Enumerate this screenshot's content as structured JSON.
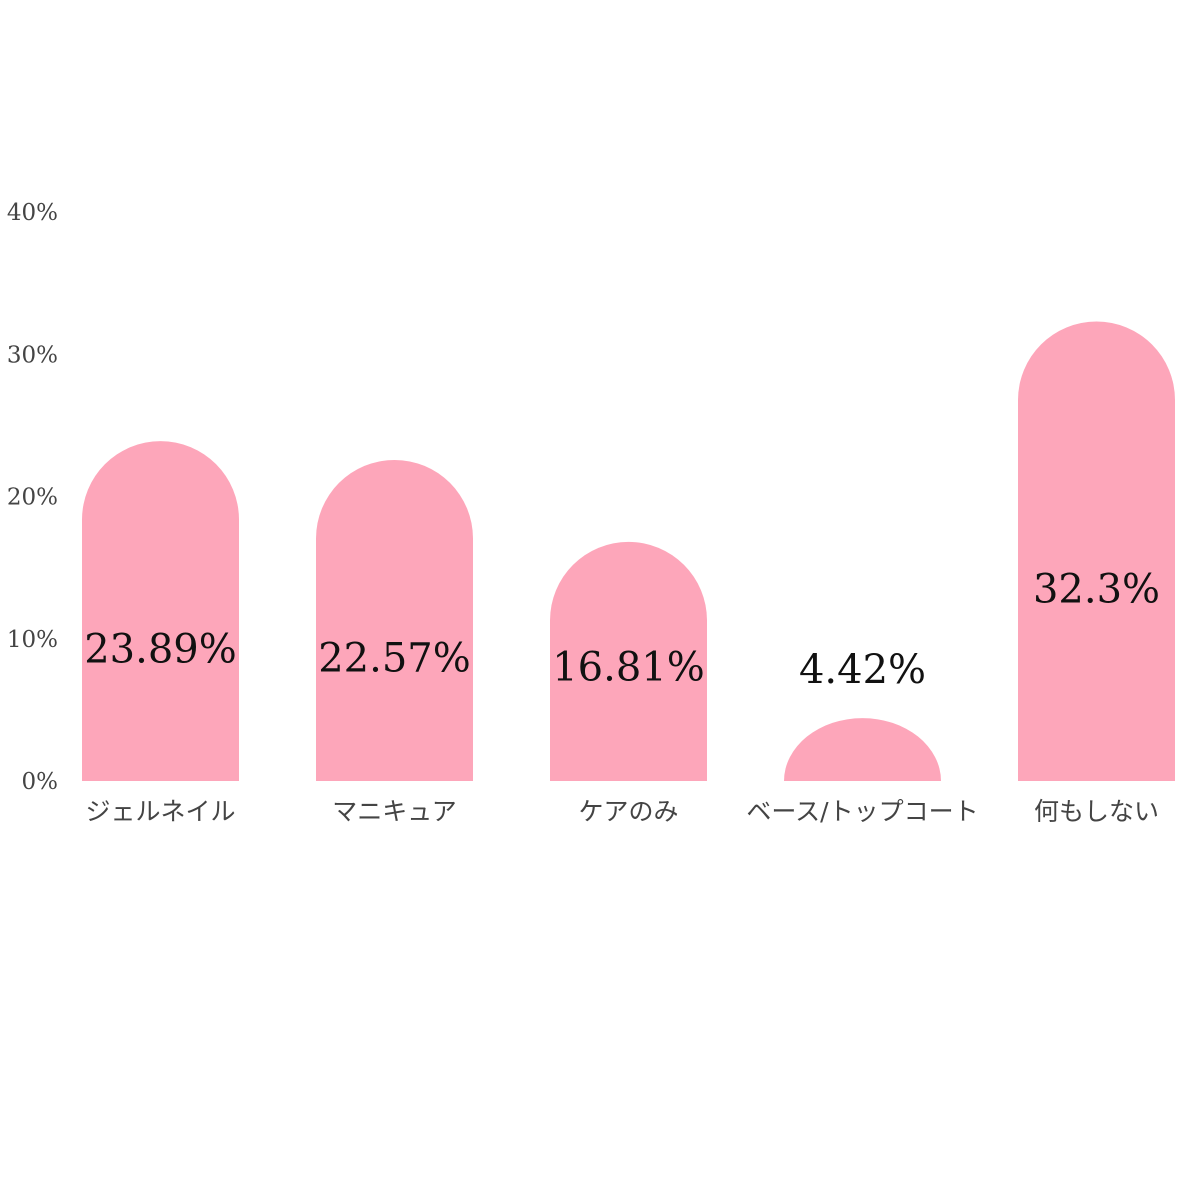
{
  "chart_data": {
    "type": "bar",
    "categories": [
      "ジェルネイル",
      "マニキュア",
      "ケアのみ",
      "ベース/トップコート",
      "何もしない"
    ],
    "values": [
      23.89,
      22.57,
      16.81,
      4.42,
      32.3
    ],
    "value_labels": [
      "23.89%",
      "22.57%",
      "16.81%",
      "4.42%",
      "32.3%"
    ],
    "yticks": [
      0,
      10,
      20,
      30,
      40
    ],
    "ytick_labels": [
      "0%",
      "10%",
      "20%",
      "30%",
      "40%"
    ],
    "ylim": [
      0,
      40
    ],
    "title": "",
    "xlabel": "",
    "ylabel": "",
    "grid": false,
    "bar_color": "#fda6ba"
  }
}
